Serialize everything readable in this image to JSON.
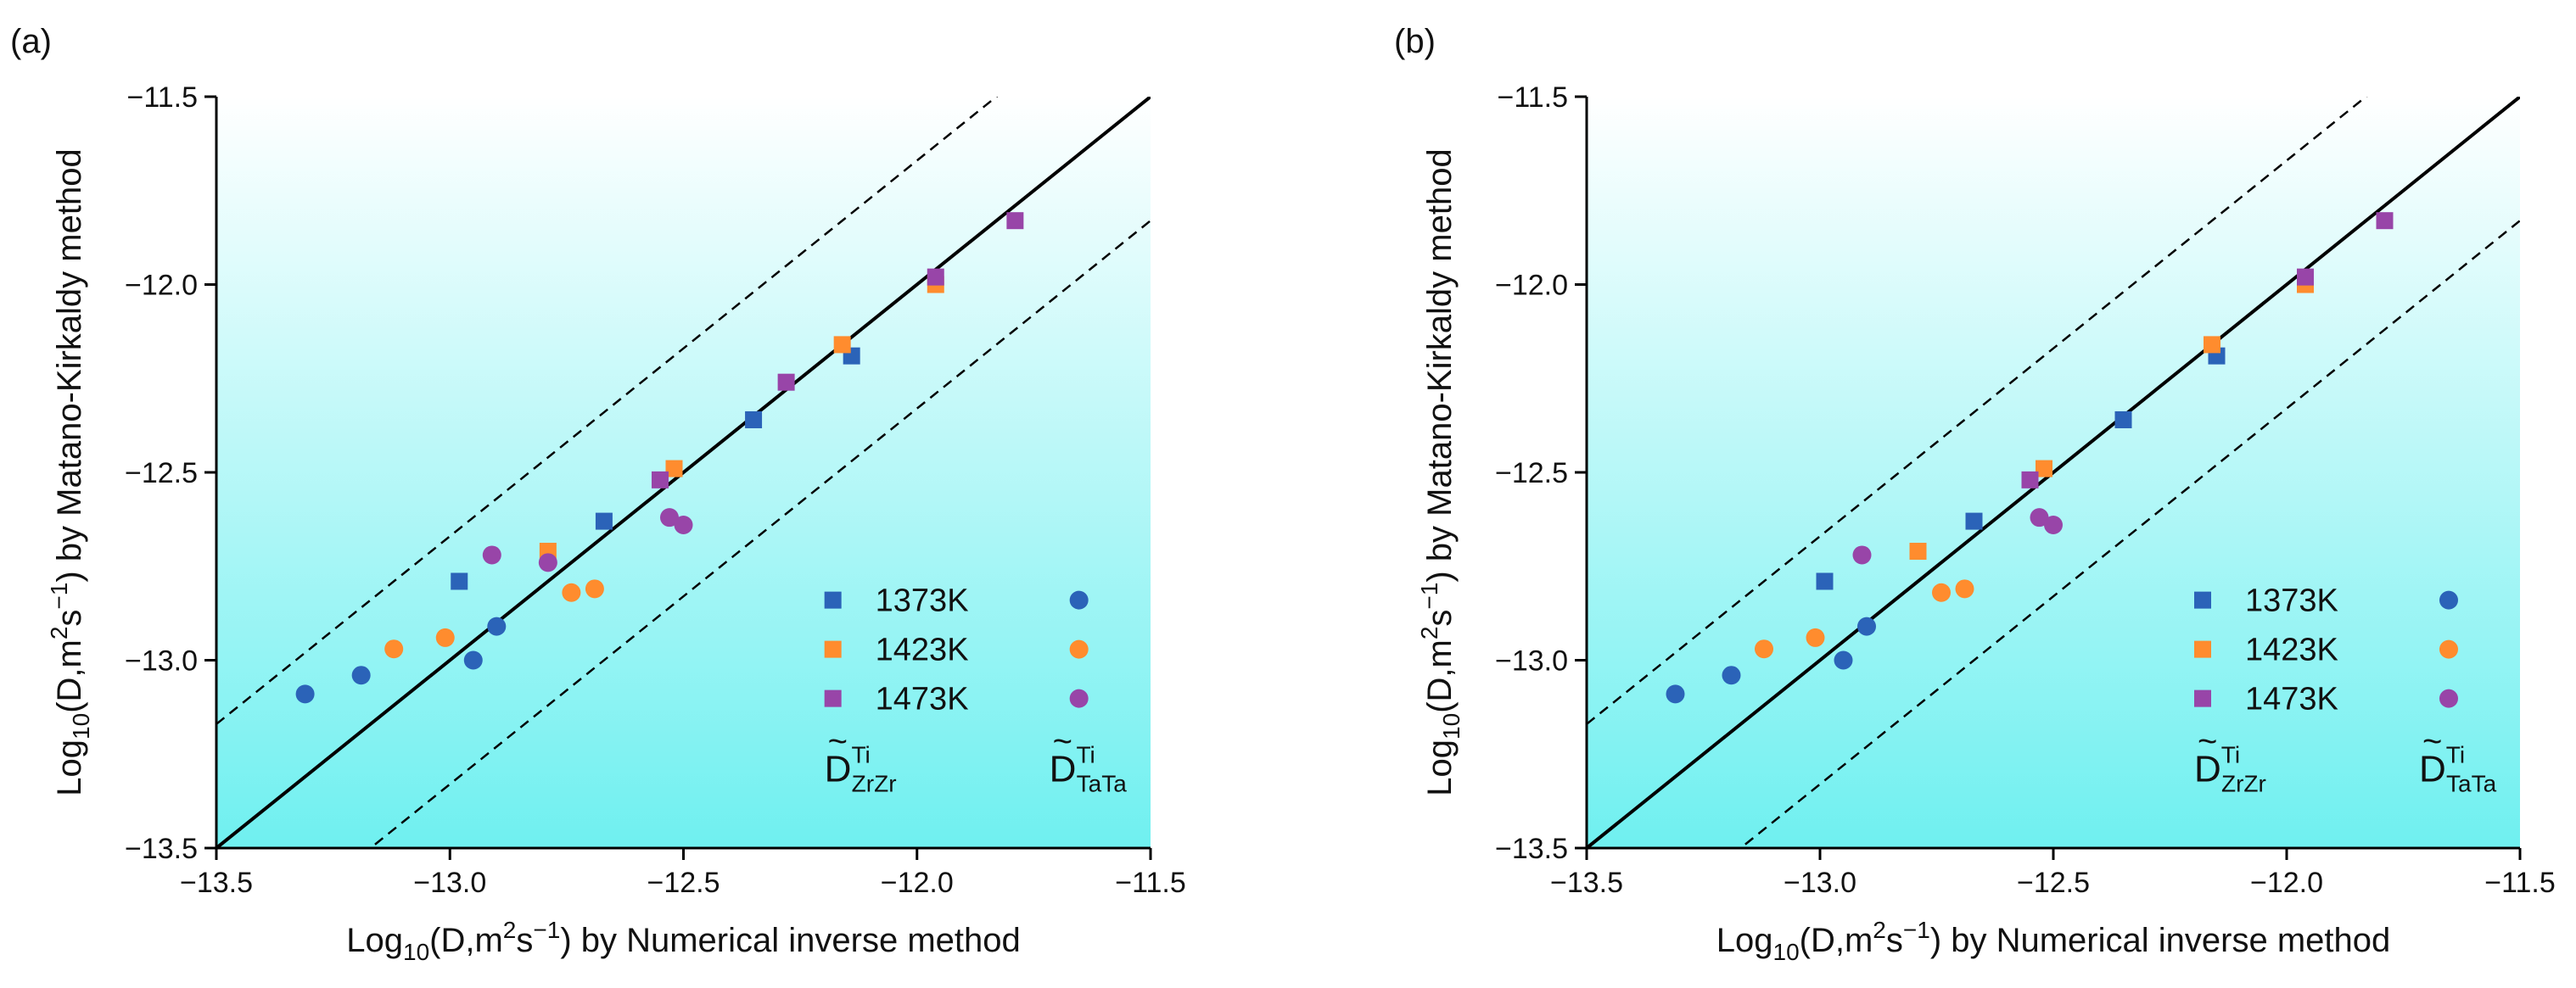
{
  "colors": {
    "k1373": "#2b63b8",
    "k1423": "#ff8c2e",
    "k1473": "#9845a8",
    "gradient_top": "#ffffff",
    "gradient_bottom": "#6ff0f0"
  },
  "axis_text": {
    "x_prefix": "Log",
    "x_sub": "10",
    "x_mid": "(D,m",
    "x_sup1": "2",
    "x_mid2": "s",
    "x_sup2": "−1",
    "x_suffix": ") by Numerical inverse method",
    "y_suffix": ") by Matano-Kirkaldy method"
  },
  "legend": {
    "labels": [
      "1373K",
      "1423K",
      "1473K"
    ],
    "col1_main": "D",
    "col1_tilde": "~",
    "col1_sup": "Ti",
    "col1_sub": "ZrZr",
    "col2_main": "D",
    "col2_tilde": "~",
    "col2_sup": "Ti",
    "col2_sub": "TaTa"
  },
  "chart_data": [
    {
      "type": "scatter",
      "panel_label": "(a)",
      "xlim": [
        -13.5,
        -11.5
      ],
      "ylim": [
        -13.5,
        -11.5
      ],
      "xticks": [
        -13.5,
        -13.0,
        -12.5,
        -12.0,
        -11.5
      ],
      "yticks": [
        -13.5,
        -13.0,
        -12.5,
        -12.0,
        -11.5
      ],
      "tick_labels": [
        "−13.5",
        "−13.0",
        "−12.5",
        "−12.0",
        "−11.5"
      ],
      "reference_lines": [
        {
          "style": "solid",
          "offset": 0
        },
        {
          "style": "dashed",
          "offset": 0.33
        },
        {
          "style": "dashed",
          "offset": -0.33
        }
      ],
      "series": [
        {
          "name": "1373K",
          "marker": "square",
          "color": "#2b63b8",
          "points": [
            [
              -12.98,
              -12.79
            ],
            [
              -12.67,
              -12.63
            ],
            [
              -12.35,
              -12.36
            ],
            [
              -12.14,
              -12.19
            ]
          ]
        },
        {
          "name": "1423K",
          "marker": "square",
          "color": "#ff8c2e",
          "points": [
            [
              -12.79,
              -12.71
            ],
            [
              -12.52,
              -12.49
            ],
            [
              -12.16,
              -12.16
            ],
            [
              -11.96,
              -12.0
            ]
          ]
        },
        {
          "name": "1473K",
          "marker": "square",
          "color": "#9845a8",
          "points": [
            [
              -12.55,
              -12.52
            ],
            [
              -12.28,
              -12.26
            ],
            [
              -11.96,
              -11.98
            ],
            [
              -11.79,
              -11.83
            ]
          ]
        },
        {
          "name": "1373K",
          "marker": "circle",
          "color": "#2b63b8",
          "points": [
            [
              -13.31,
              -13.09
            ],
            [
              -13.19,
              -13.04
            ],
            [
              -12.95,
              -13.0
            ],
            [
              -12.9,
              -12.91
            ]
          ]
        },
        {
          "name": "1423K",
          "marker": "circle",
          "color": "#ff8c2e",
          "points": [
            [
              -13.12,
              -12.97
            ],
            [
              -13.01,
              -12.94
            ],
            [
              -12.74,
              -12.82
            ],
            [
              -12.69,
              -12.81
            ]
          ]
        },
        {
          "name": "1473K",
          "marker": "circle",
          "color": "#9845a8",
          "points": [
            [
              -12.91,
              -12.72
            ],
            [
              -12.79,
              -12.74
            ],
            [
              -12.53,
              -12.62
            ],
            [
              -12.5,
              -12.64
            ]
          ]
        }
      ]
    },
    {
      "type": "scatter",
      "panel_label": "(b)",
      "xlim": [
        -13.5,
        -11.5
      ],
      "ylim": [
        -13.5,
        -11.5
      ],
      "xticks": [
        -13.5,
        -13.0,
        -12.5,
        -12.0,
        -11.5
      ],
      "yticks": [
        -13.5,
        -13.0,
        -12.5,
        -12.0,
        -11.5
      ],
      "tick_labels": [
        "−13.5",
        "−13.0",
        "−12.5",
        "−12.0",
        "−11.5"
      ],
      "reference_lines": [
        {
          "style": "solid",
          "offset": 0
        },
        {
          "style": "dashed",
          "offset": 0.33
        },
        {
          "style": "dashed",
          "offset": -0.33
        }
      ],
      "series": [
        {
          "name": "1373K",
          "marker": "square",
          "color": "#2b63b8",
          "points": [
            [
              -12.99,
              -12.79
            ],
            [
              -12.67,
              -12.63
            ],
            [
              -12.35,
              -12.36
            ],
            [
              -12.15,
              -12.19
            ]
          ]
        },
        {
          "name": "1423K",
          "marker": "square",
          "color": "#ff8c2e",
          "points": [
            [
              -12.79,
              -12.71
            ],
            [
              -12.52,
              -12.49
            ],
            [
              -12.16,
              -12.16
            ],
            [
              -11.96,
              -12.0
            ]
          ]
        },
        {
          "name": "1473K",
          "marker": "square",
          "color": "#9845a8",
          "points": [
            [
              -12.55,
              -12.52
            ],
            [
              -11.96,
              -11.98
            ],
            [
              -11.79,
              -11.83
            ]
          ]
        },
        {
          "name": "1373K",
          "marker": "circle",
          "color": "#2b63b8",
          "points": [
            [
              -13.31,
              -13.09
            ],
            [
              -13.19,
              -13.04
            ],
            [
              -12.95,
              -13.0
            ],
            [
              -12.9,
              -12.91
            ]
          ]
        },
        {
          "name": "1423K",
          "marker": "circle",
          "color": "#ff8c2e",
          "points": [
            [
              -13.12,
              -12.97
            ],
            [
              -13.01,
              -12.94
            ],
            [
              -12.74,
              -12.82
            ],
            [
              -12.69,
              -12.81
            ]
          ]
        },
        {
          "name": "1473K",
          "marker": "circle",
          "color": "#9845a8",
          "points": [
            [
              -12.91,
              -12.72
            ],
            [
              -12.53,
              -12.62
            ],
            [
              -12.5,
              -12.64
            ]
          ]
        }
      ]
    }
  ]
}
